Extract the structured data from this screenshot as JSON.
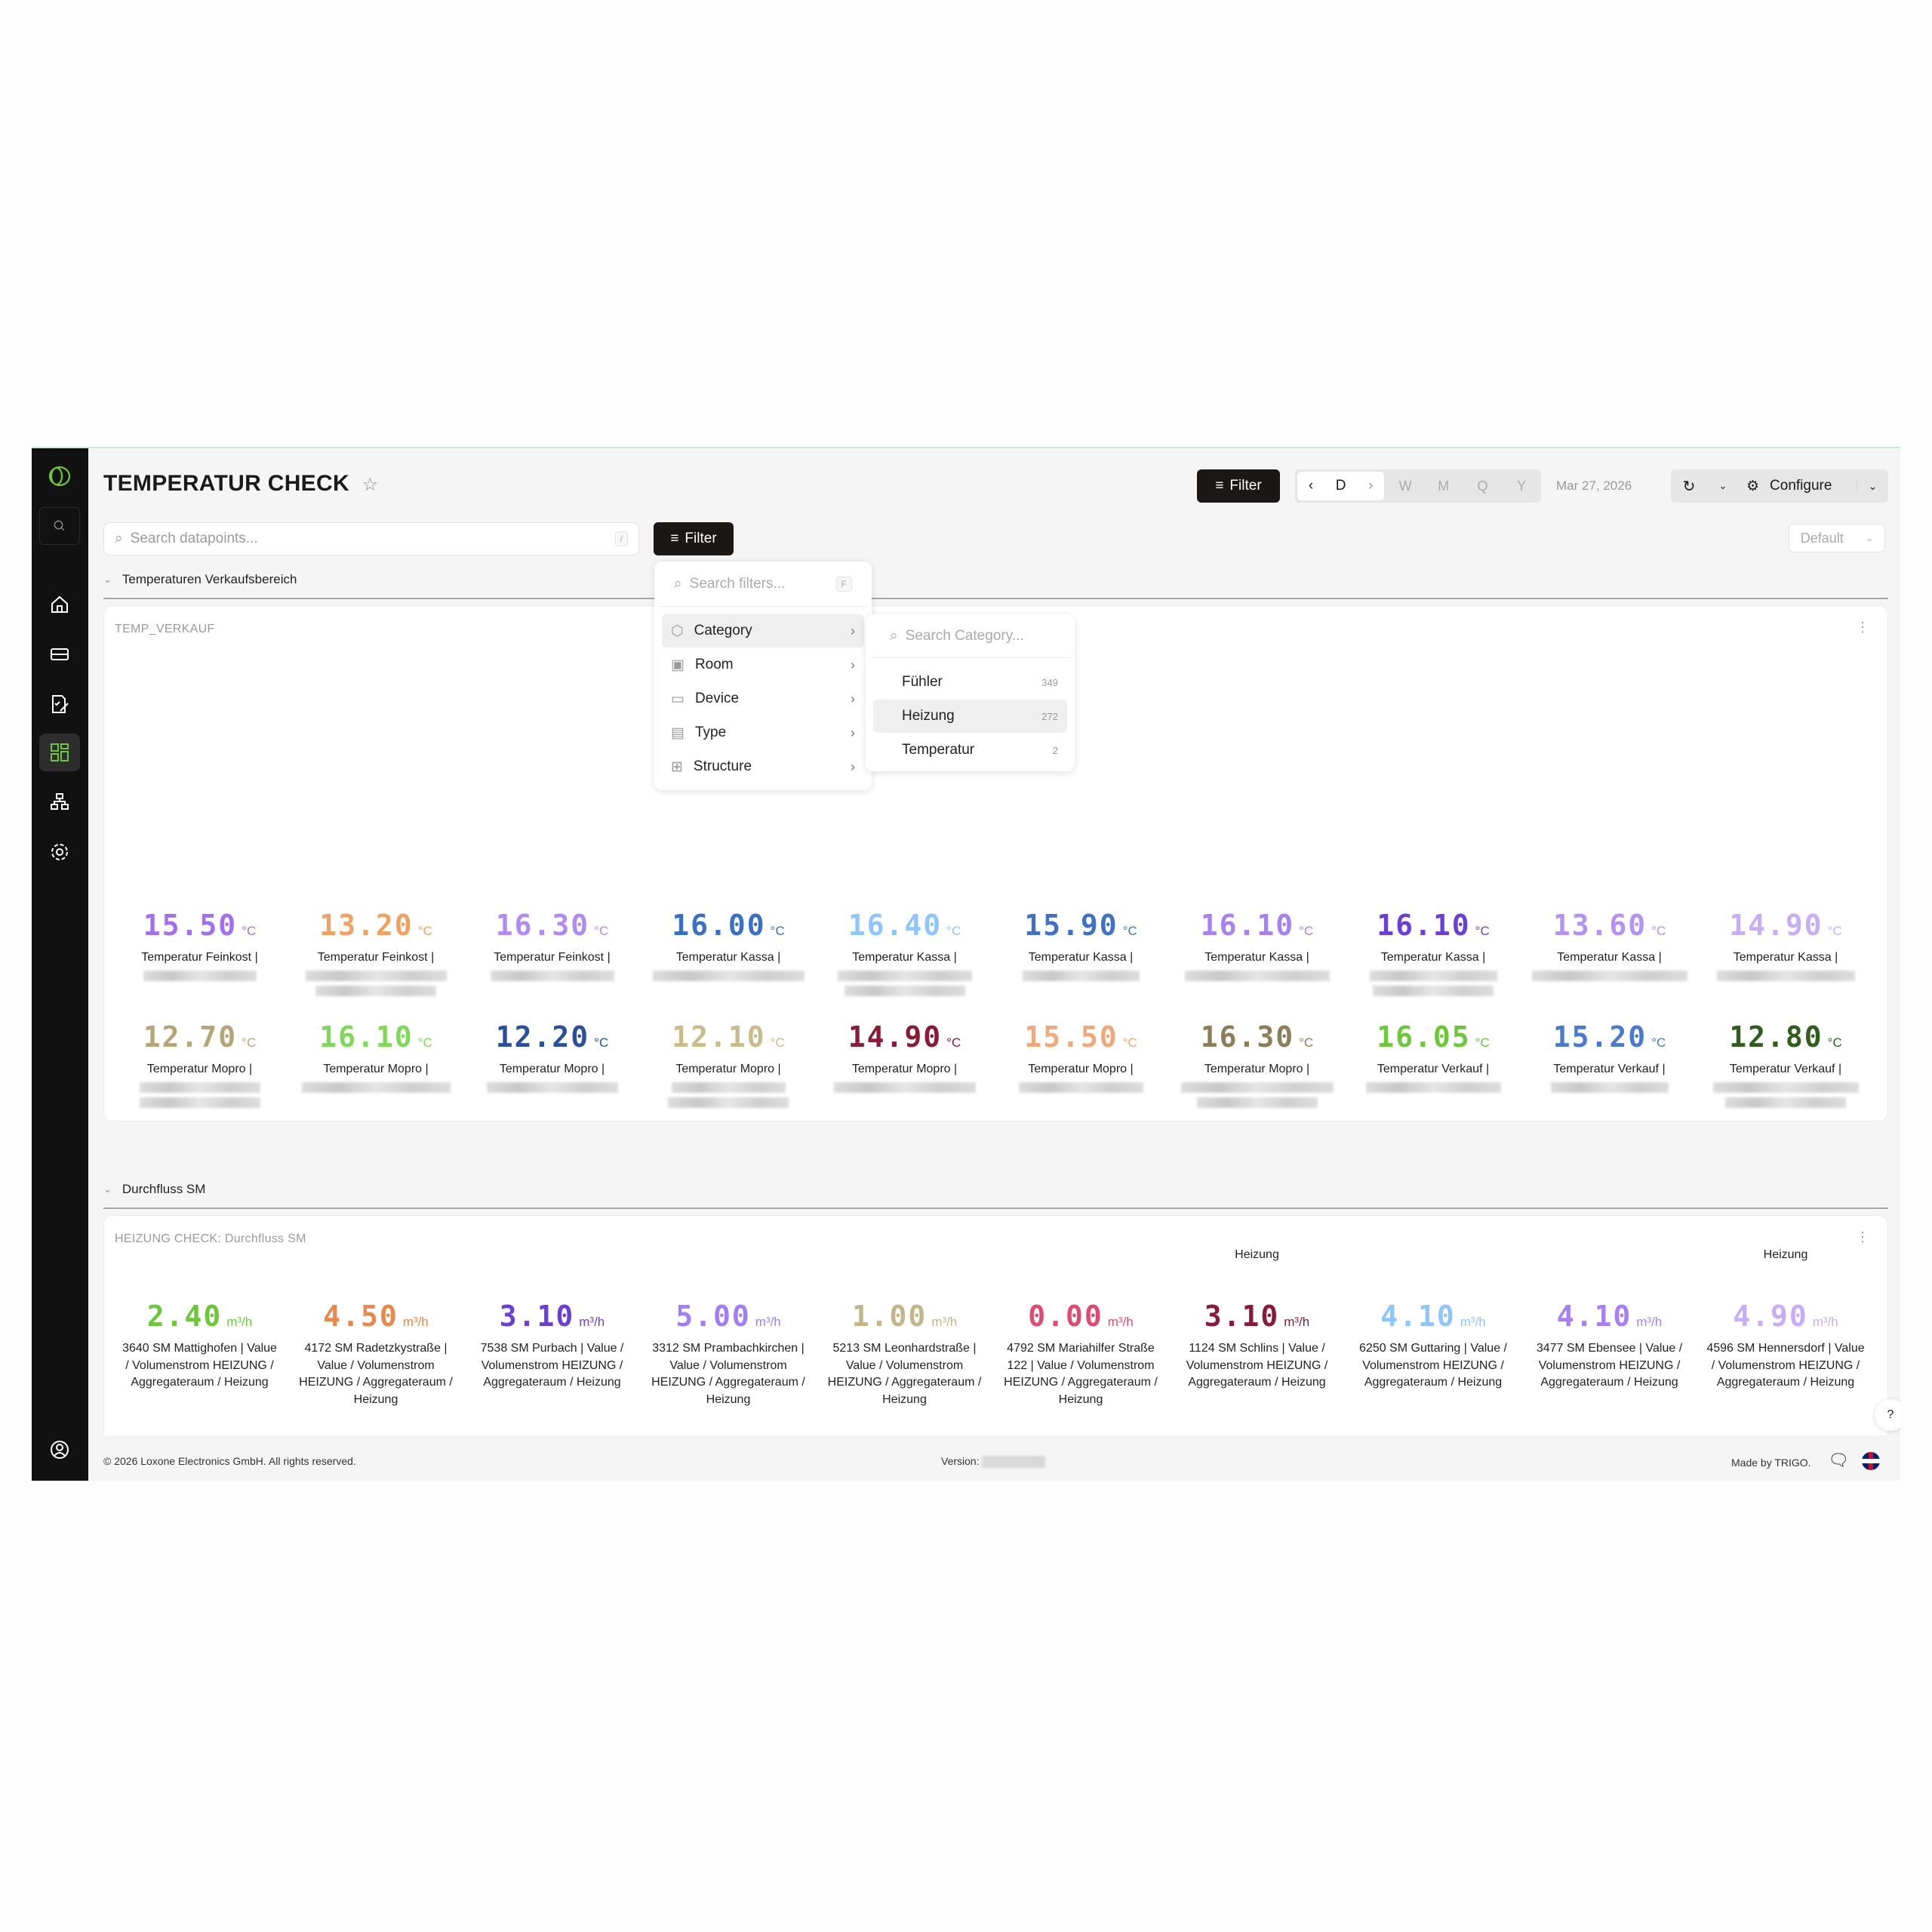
{
  "header": {
    "title": "TEMPERATUR CHECK",
    "filter_label": "Filter",
    "periods": [
      "D",
      "W",
      "M",
      "Q",
      "Y"
    ],
    "active_period": "D",
    "date": "Mar 27, 2026",
    "configure_label": "Configure",
    "view_select": "Default"
  },
  "search": {
    "placeholder": "Search datapoints...",
    "shortcut": "/",
    "filter_label": "Filter"
  },
  "filter_menu": {
    "search_placeholder": "Search filters...",
    "shortcut": "F",
    "items": [
      {
        "label": "Category",
        "icon": "hexagon-icon"
      },
      {
        "label": "Room",
        "icon": "room-icon"
      },
      {
        "label": "Device",
        "icon": "device-icon"
      },
      {
        "label": "Type",
        "icon": "type-icon"
      },
      {
        "label": "Structure",
        "icon": "structure-icon"
      }
    ],
    "submenu": {
      "search_placeholder": "Search Category...",
      "options": [
        {
          "label": "Fühler",
          "count": "349"
        },
        {
          "label": "Heizung",
          "count": "272"
        },
        {
          "label": "Temperatur",
          "count": "2"
        }
      ]
    }
  },
  "sections": [
    {
      "header": "Temperaturen Verkaufsbereich",
      "card_title": "TEMP_VERKAUF",
      "unit": "°C",
      "items": [
        {
          "value": "15.50",
          "label": "Temperatur Feinkost |",
          "color": "#a070f0"
        },
        {
          "value": "13.20",
          "label": "Temperatur Feinkost |",
          "color": "#f0a060"
        },
        {
          "value": "16.30",
          "label": "Temperatur Feinkost |",
          "color": "#b08af5"
        },
        {
          "value": "16.00",
          "label": "Temperatur Kassa |",
          "color": "#3a6fc8"
        },
        {
          "value": "16.40",
          "label": "Temperatur Kassa |",
          "color": "#8ec5fb"
        },
        {
          "value": "15.90",
          "label": "Temperatur Kassa |",
          "color": "#3f72c6"
        },
        {
          "value": "16.10",
          "label": "Temperatur Kassa |",
          "color": "#a680f5"
        },
        {
          "value": "16.10",
          "label": "Temperatur Kassa |",
          "color": "#6a3fd8"
        },
        {
          "value": "13.60",
          "label": "Temperatur Kassa |",
          "color": "#b392f5"
        },
        {
          "value": "14.90",
          "label": "Temperatur Kassa |",
          "color": "#c6aef7"
        },
        {
          "value": "12.70",
          "label": "Temperatur Mopro |",
          "color": "#b3a678"
        },
        {
          "value": "16.10",
          "label": "Temperatur Mopro |",
          "color": "#80d858"
        },
        {
          "value": "12.20",
          "label": "Temperatur Mopro |",
          "color": "#2a4f9c"
        },
        {
          "value": "12.10",
          "label": "Temperatur Mopro |",
          "color": "#c8bc8a"
        },
        {
          "value": "14.90",
          "label": "Temperatur Mopro |",
          "color": "#8a1a38"
        },
        {
          "value": "15.50",
          "label": "Temperatur Mopro |",
          "color": "#f0a878"
        },
        {
          "value": "16.30",
          "label": "Temperatur Mopro |",
          "color": "#8a7f58"
        },
        {
          "value": "16.05",
          "label": "Temperatur Verkauf |",
          "color": "#6cc83a"
        },
        {
          "value": "15.20",
          "label": "Temperatur Verkauf |",
          "color": "#4a7ad0"
        },
        {
          "value": "12.80",
          "label": "Temperatur Verkauf |",
          "color": "#2f5d1a"
        }
      ]
    },
    {
      "header": "Durchfluss SM",
      "card_title": "HEIZUNG CHECK: Durchfluss SM",
      "unit": "m³/h",
      "items": [
        {
          "value": "2.40",
          "label": "3640 SM Mattighofen | Value / Volumenstrom HEIZUNG / Aggregateraum / Heizung",
          "color": "#6cc83a"
        },
        {
          "value": "4.50",
          "label": "4172 SM Radetzkystraße | Value / Volumenstrom HEIZUNG / Aggregateraum / Heizung",
          "color": "#e8884a"
        },
        {
          "value": "3.10",
          "label": "7538 SM Purbach | Value / Volumenstrom HEIZUNG / Aggregateraum / Heizung",
          "color": "#6a3fd8"
        },
        {
          "value": "5.00",
          "label": "3312 SM Prambachkirchen | Value / Volumenstrom HEIZUNG / Aggregateraum / Heizung",
          "color": "#a07ef5"
        },
        {
          "value": "1.00",
          "label": "5213 SM Leonhardstraße | Value / Volumenstrom HEIZUNG / Aggregateraum / Heizung",
          "color": "#c0b68a"
        },
        {
          "value": "0.00",
          "label": "4792 SM Mariahilfer Straße 122 | Value / Volumenstrom HEIZUNG / Aggregateraum / Heizung",
          "color": "#e04a70"
        },
        {
          "value": "3.10",
          "label": "1124 SM Schlins | Value / Volumenstrom HEIZUNG / Aggregateraum / Heizung",
          "color": "#8a1a38",
          "top_note": "Heizung"
        },
        {
          "value": "4.10",
          "label": "6250 SM Guttaring | Value / Volumenstrom HEIZUNG / Aggregateraum / Heizung",
          "color": "#8ec5fb"
        },
        {
          "value": "4.10",
          "label": "3477 SM Ebensee | Value / Volumenstrom HEIZUNG / Aggregateraum / Heizung",
          "color": "#a680f5"
        },
        {
          "value": "4.90",
          "label": "4596 SM Hennersdorf | Value / Volumenstrom HEIZUNG / Aggregateraum / Heizung",
          "color": "#c6aef7",
          "top_note": "Heizung"
        }
      ]
    }
  ],
  "footer": {
    "copyright": "© 2026 Loxone Electronics GmbH. All rights reserved.",
    "version_label": "Version:",
    "made_by": "Made by TRIGO."
  },
  "help_label": "?",
  "colors": {
    "accent": "#6cc83a",
    "sidebar": "#111111",
    "dark_button": "#1b1715"
  }
}
